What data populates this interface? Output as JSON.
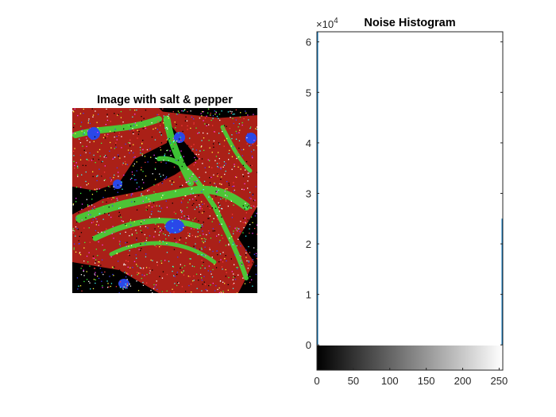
{
  "figure": {
    "left_panel": {
      "title": "Image with salt & pepper",
      "image": {
        "depicts": "fluorescence micrograph of cells with salt-and-pepper noise",
        "colors": {
          "background": "#000000",
          "actin": "#3fd43a",
          "membrane": "#d42a1e",
          "nuclei": "#2a48e8"
        }
      }
    },
    "chart_data": {
      "type": "bar",
      "title": "Noise Histogram",
      "xlabel": "",
      "ylabel": "",
      "xlim": [
        0,
        255
      ],
      "ylim": [
        -5000,
        62000
      ],
      "y_exponent_label": "×10",
      "y_exponent_power": "4",
      "x_ticks": [
        "0",
        "50",
        "100",
        "150",
        "200",
        "250"
      ],
      "x_tick_values": [
        0,
        50,
        100,
        150,
        200,
        250
      ],
      "y_ticks": [
        "0",
        "1",
        "2",
        "3",
        "4",
        "5",
        "6"
      ],
      "y_tick_values": [
        0,
        10000,
        20000,
        30000,
        40000,
        50000,
        60000
      ],
      "x": [
        0,
        255
      ],
      "values": [
        62000,
        25000
      ],
      "bar_color": "#0072bd",
      "colorbar": {
        "type": "grayscale",
        "range": [
          0,
          255
        ]
      }
    }
  }
}
